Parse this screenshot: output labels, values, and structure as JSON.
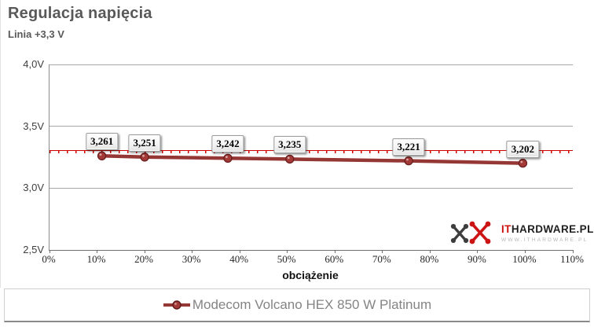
{
  "header": {
    "title": "Regulacja napięcia",
    "subtitle": "Linia +3,3 V"
  },
  "chart_data": {
    "type": "line",
    "title": "Regulacja napięcia",
    "subtitle": "Linia +3,3 V",
    "xlabel": "obciążenie",
    "ylabel": "",
    "xlim": [
      0,
      110
    ],
    "ylim": [
      2.5,
      4.0
    ],
    "x_tick_labels": [
      "0%",
      "10%",
      "20%",
      "30%",
      "40%",
      "50%",
      "60%",
      "70%",
      "80%",
      "90%",
      "100%",
      "110%"
    ],
    "y_tick_labels": [
      "4,0V",
      "3,5V",
      "3,0V",
      "2,5V"
    ],
    "y_tick_values": [
      4.0,
      3.5,
      3.0,
      2.5
    ],
    "grid": "horizontal",
    "legend_position": "bottom",
    "reference_line": {
      "value": 3.3,
      "color": "#cc0000",
      "style": "dash-tick"
    },
    "series": [
      {
        "name": "Modecom Volcano HEX 850 W Platinum",
        "color": "#953735",
        "marker": "circle",
        "marker_fill": "#a33a37",
        "marker_stroke": "#6e2120",
        "x": [
          11,
          20,
          37.5,
          50.5,
          75.5,
          99.5
        ],
        "y": [
          3.261,
          3.251,
          3.242,
          3.235,
          3.221,
          3.202
        ],
        "point_labels": [
          "3,261",
          "3,251",
          "3,242",
          "3,235",
          "3,221",
          "3,202"
        ]
      }
    ]
  },
  "watermark": {
    "brand_red": "IT",
    "brand_dark": "HARDWARE.PL",
    "url": "WWW.ITHARDWARE.PL"
  },
  "colors": {
    "title": "#595959",
    "gridline": "#a6a6a6",
    "axis": "#6f6f6f",
    "reference": "#cc0000",
    "series": "#953735",
    "legend_text": "#848484"
  }
}
